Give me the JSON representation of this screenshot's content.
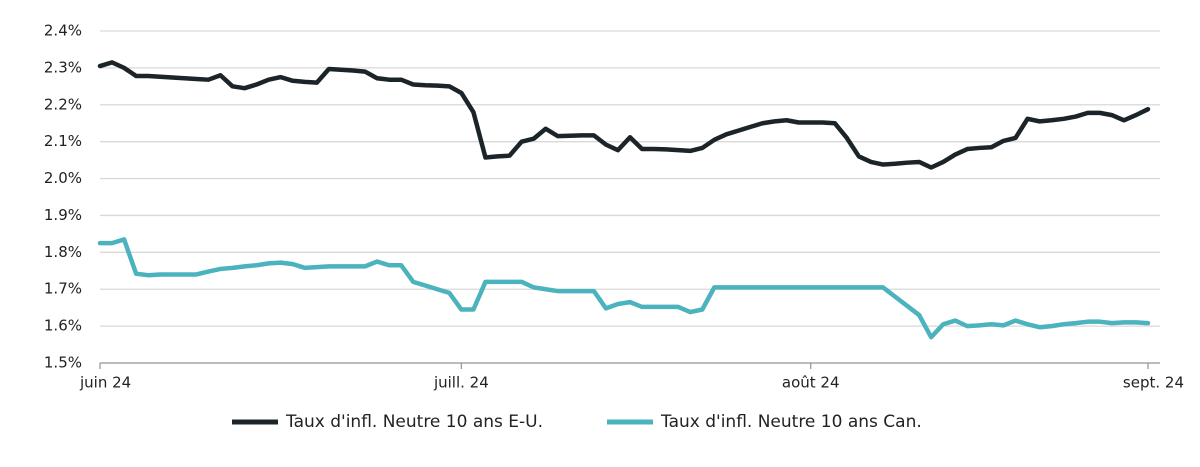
{
  "chart_data": {
    "type": "line",
    "categories": [
      "juin 24",
      null,
      null,
      null,
      null,
      null,
      null,
      null,
      null,
      null,
      null,
      null,
      null,
      null,
      null,
      null,
      null,
      null,
      null,
      null,
      null,
      null,
      null,
      null,
      null,
      null,
      null,
      null,
      null,
      null,
      "juill. 24",
      null,
      null,
      null,
      null,
      null,
      null,
      null,
      null,
      null,
      null,
      null,
      null,
      null,
      null,
      null,
      null,
      null,
      null,
      null,
      null,
      null,
      null,
      null,
      null,
      null,
      null,
      null,
      null,
      "août 24",
      null,
      null,
      null,
      null,
      null,
      null,
      null,
      null,
      null,
      null,
      null,
      null,
      null,
      null,
      null,
      null,
      null,
      null,
      null,
      null,
      null,
      null,
      null,
      null,
      null,
      null,
      null,
      "sept. 24"
    ],
    "series": [
      {
        "name": "Taux d'infl. Neutre 10 ans E-U.",
        "color": "#1b2429",
        "values": [
          2.305,
          2.315,
          2.3,
          2.278,
          2.278,
          2.276,
          2.274,
          2.272,
          2.27,
          2.268,
          2.28,
          2.25,
          2.245,
          2.255,
          2.268,
          2.275,
          2.265,
          2.262,
          2.26,
          2.297,
          2.295,
          2.293,
          2.29,
          2.272,
          2.268,
          2.268,
          2.255,
          2.253,
          2.252,
          2.25,
          2.232,
          2.18,
          2.057,
          2.06,
          2.062,
          2.1,
          2.108,
          2.135,
          2.115,
          2.116,
          2.117,
          2.117,
          2.092,
          2.077,
          2.112,
          2.08,
          2.08,
          2.079,
          2.077,
          2.075,
          2.083,
          2.105,
          2.12,
          2.13,
          2.14,
          2.15,
          2.155,
          2.158,
          2.152,
          2.152,
          2.152,
          2.15,
          2.11,
          2.06,
          2.045,
          2.038,
          2.04,
          2.043,
          2.045,
          2.03,
          2.045,
          2.065,
          2.08,
          2.083,
          2.085,
          2.102,
          2.11,
          2.162,
          2.155,
          2.158,
          2.162,
          2.168,
          2.178,
          2.178,
          2.172,
          2.158,
          2.172,
          2.188
        ]
      },
      {
        "name": "Taux d'infl. Neutre 10 ans Can.",
        "color": "#4bb3bd",
        "values": [
          1.825,
          1.825,
          1.835,
          1.742,
          1.738,
          1.74,
          1.74,
          1.74,
          1.74,
          1.748,
          1.755,
          1.758,
          1.762,
          1.765,
          1.77,
          1.772,
          1.768,
          1.758,
          1.76,
          1.762,
          1.762,
          1.762,
          1.762,
          1.775,
          1.765,
          1.765,
          1.72,
          1.71,
          1.7,
          1.69,
          1.645,
          1.645,
          1.72,
          1.72,
          1.72,
          1.72,
          1.705,
          1.7,
          1.695,
          1.695,
          1.695,
          1.695,
          1.648,
          1.66,
          1.665,
          1.652,
          1.652,
          1.652,
          1.652,
          1.638,
          1.645,
          1.705,
          1.705,
          1.705,
          1.705,
          1.705,
          1.705,
          1.705,
          1.705,
          1.705,
          1.705,
          1.705,
          1.705,
          1.705,
          1.705,
          1.705,
          1.68,
          1.655,
          1.63,
          1.57,
          1.605,
          1.615,
          1.6,
          1.602,
          1.605,
          1.602,
          1.615,
          1.605,
          1.597,
          1.6,
          1.605,
          1.608,
          1.612,
          1.612,
          1.608,
          1.61,
          1.61,
          1.608
        ]
      }
    ],
    "ylim": [
      1.5,
      2.4
    ],
    "yticks": [
      {
        "value": 1.5,
        "label": "1.5%"
      },
      {
        "value": 1.6,
        "label": "1.6%"
      },
      {
        "value": 1.7,
        "label": "1.7%"
      },
      {
        "value": 1.8,
        "label": "1.8%"
      },
      {
        "value": 1.9,
        "label": "1.9%"
      },
      {
        "value": 2.0,
        "label": "2.0%"
      },
      {
        "value": 2.1,
        "label": "2.1%"
      },
      {
        "value": 2.2,
        "label": "2.2%"
      },
      {
        "value": 2.3,
        "label": "2.3%"
      },
      {
        "value": 2.4,
        "label": "2.4%"
      }
    ],
    "grid": true,
    "legend": "bottom"
  }
}
